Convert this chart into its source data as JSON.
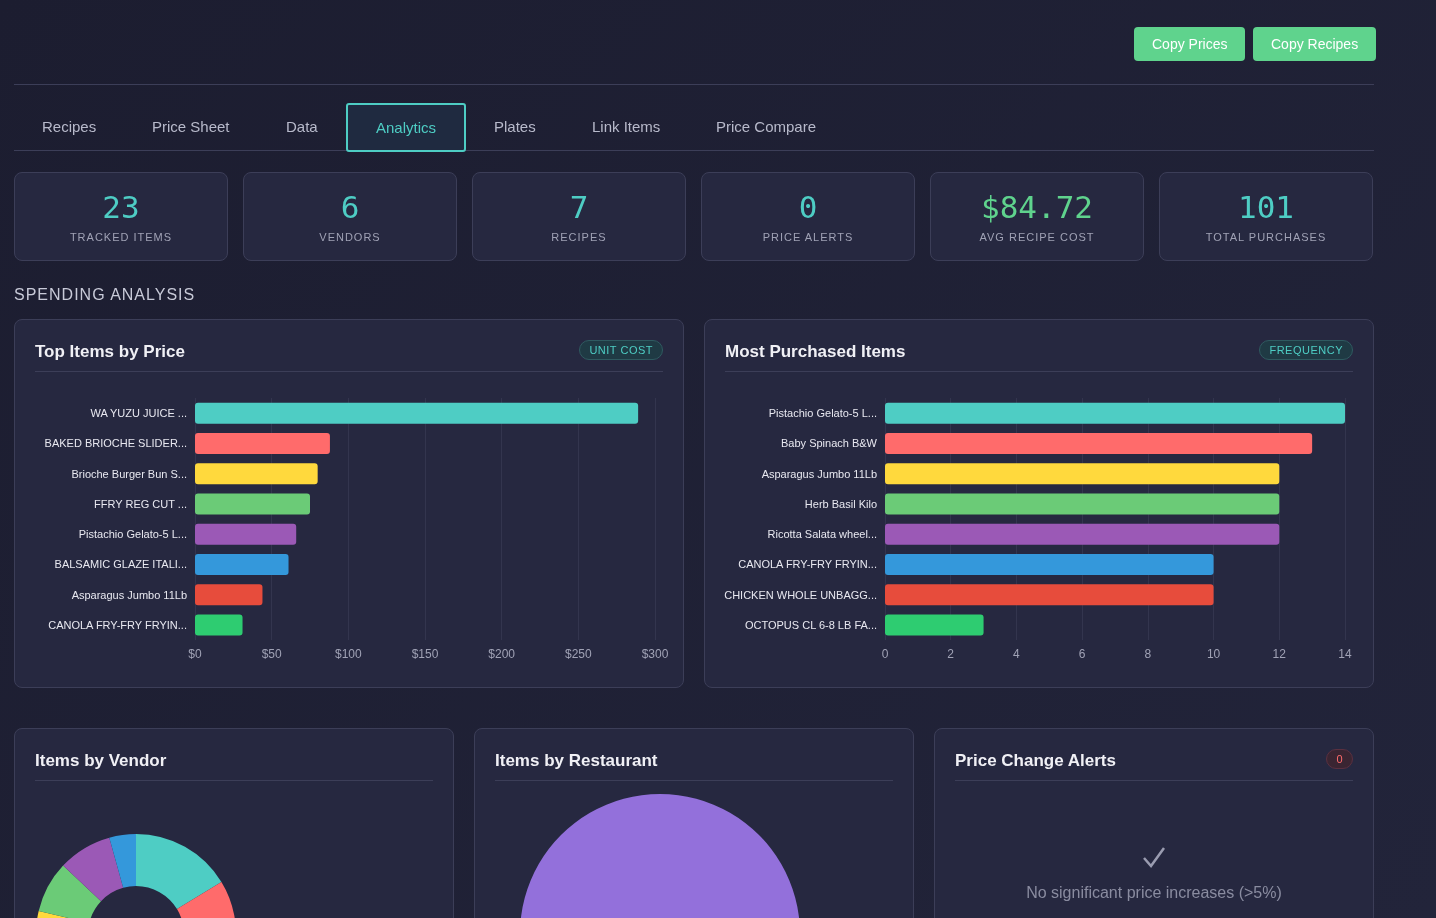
{
  "chart_data": [
    {
      "type": "other",
      "categories": [
        "Recipes",
        "Price Sheet",
        "Data",
        "Analytics",
        "Plates",
        "Link Items",
        "Price Compare"
      ],
      "annotations": [
        "Copy Prices",
        "Copy Recipes"
      ]
    },
    {
      "type": "other",
      "categories": [
        "TRACKED ITEMS",
        "VENDORS",
        "RECIPES",
        "PRICE ALERTS",
        "AVG RECIPE COST",
        "TOTAL PURCHASES"
      ],
      "annotations": [
        "23",
        "6",
        "7",
        "0",
        "$84.72",
        "101",
        "SPENDING ANALYSIS"
      ]
    },
    {
      "type": "bar",
      "orientation": "horizontal",
      "title": "Top Items by Price",
      "subtitle": "UNIT COST",
      "categories": [
        "WA YUZU JUICE ...",
        "BAKED BRIOCHE SLIDER...",
        "Brioche Burger Bun S...",
        "FFRY REG CUT ...",
        "Pistachio Gelato-5 L...",
        "BALSAMIC GLAZE ITALI...",
        "Asparagus Jumbo 11Lb",
        "CANOLA FRY-FRY FRYIN..."
      ],
      "values": [
        289,
        88,
        80,
        75,
        66,
        61,
        44,
        31
      ],
      "colors": [
        "#4ecdc4",
        "#ff6b6b",
        "#ffd93d",
        "#6bcb77",
        "#9b59b6",
        "#3498db",
        "#e74c3c",
        "#2ecc71"
      ],
      "xlim": [
        0,
        300
      ],
      "xticks": [
        {
          "value": 0,
          "label": "$0"
        },
        {
          "value": 50,
          "label": "$50"
        },
        {
          "value": 100,
          "label": "$100"
        },
        {
          "value": 150,
          "label": "$150"
        },
        {
          "value": 200,
          "label": "$200"
        },
        {
          "value": 250,
          "label": "$250"
        },
        {
          "value": 300,
          "label": "$300"
        }
      ],
      "grid": "x"
    },
    {
      "type": "bar",
      "orientation": "horizontal",
      "title": "Most Purchased Items",
      "subtitle": "FREQUENCY",
      "categories": [
        "Pistachio Gelato-5 L...",
        "Baby Spinach B&W",
        "Asparagus Jumbo 11Lb",
        "Herb Basil Kilo",
        "Ricotta Salata wheel...",
        "CANOLA FRY-FRY FRYIN...",
        "CHICKEN WHOLE UNBAGG...",
        "OCTOPUS CL 6-8 LB FA..."
      ],
      "values": [
        14,
        13,
        12,
        12,
        12,
        10,
        10,
        3
      ],
      "colors": [
        "#4ecdc4",
        "#ff6b6b",
        "#ffd93d",
        "#6bcb77",
        "#9b59b6",
        "#3498db",
        "#e74c3c",
        "#2ecc71"
      ],
      "xlim": [
        0,
        14
      ],
      "xticks": [
        0,
        2,
        4,
        6,
        8,
        10,
        12,
        14
      ],
      "grid": "x"
    },
    {
      "type": "donut",
      "title": "Items by Vendor",
      "categories": [
        null,
        null,
        null,
        null,
        null,
        null
      ],
      "values": [
        16.3,
        45,
        17.4,
        8.3,
        8.7,
        4.3
      ],
      "colors": [
        "#4ecdc4",
        "#ff6b6b",
        "#ffd93d",
        "#6bcb77",
        "#9b59b6",
        "#3498db"
      ]
    },
    {
      "type": "pie",
      "title": "Items by Restaurant",
      "categories": [
        null
      ],
      "values": [
        100
      ],
      "colors": [
        "#9370db"
      ]
    },
    {
      "type": "other",
      "title": "Price Change Alerts",
      "annotations": [
        "0",
        "No significant price increases (>5%)"
      ]
    }
  ]
}
